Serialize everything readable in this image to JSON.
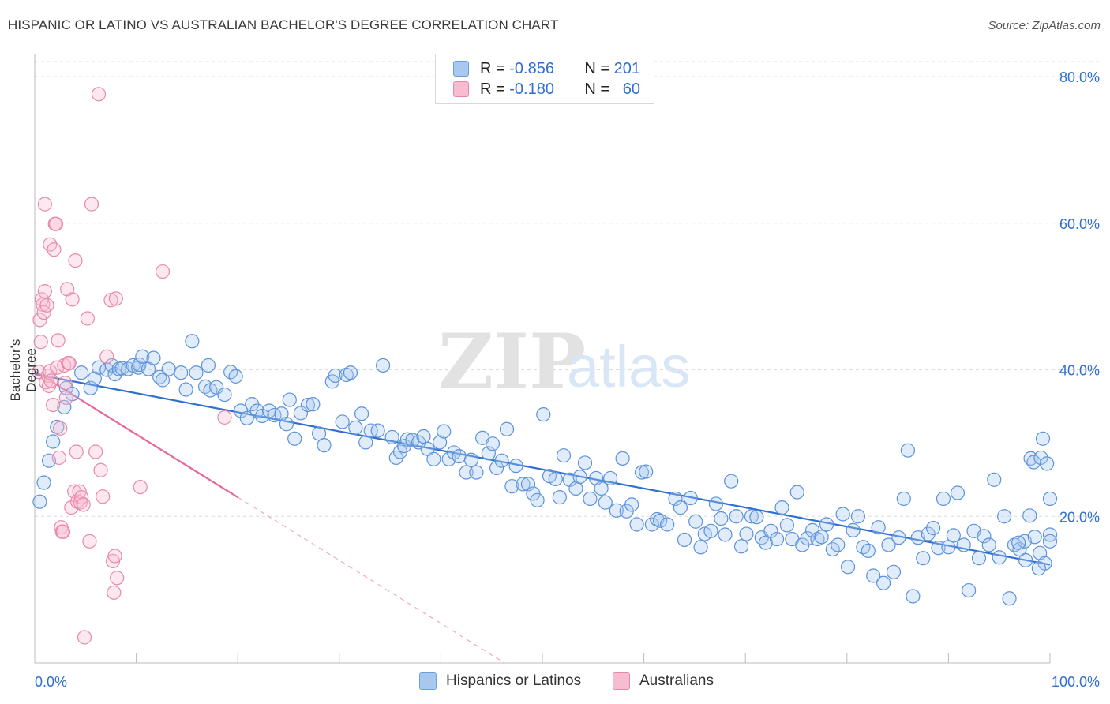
{
  "title": "HISPANIC OR LATINO VS AUSTRALIAN BACHELOR'S DEGREE CORRELATION CHART",
  "source": "Source: ZipAtlas.com",
  "watermark": {
    "zip": "ZIP",
    "atlas": "atlas"
  },
  "legend_top": [
    {
      "r_label": "R =",
      "r_value": "-0.856",
      "n_label": "N =",
      "n_value": "201",
      "color": "#a8c8f0",
      "border": "#6a9ee0"
    },
    {
      "r_label": "R =",
      "r_value": "-0.180",
      "n_label": "N =",
      "n_value": "60",
      "color": "#f8bcd0",
      "border": "#e78aa8"
    }
  ],
  "legend_bottom": [
    {
      "label": "Hispanics or Latinos",
      "color": "#a8c8f0",
      "border": "#6a9ee0"
    },
    {
      "label": "Australians",
      "color": "#f8bcd0",
      "border": "#e78aa8"
    }
  ],
  "chart_data": {
    "type": "scatter",
    "ylabel": "Bachelor's Degree",
    "xlim": [
      0,
      100
    ],
    "ylim": [
      0,
      80
    ],
    "x_tick_labels": {
      "min": "0.0%",
      "max": "100.0%"
    },
    "y_ticks": [
      {
        "value": 20,
        "label": "20.0%"
      },
      {
        "value": 40,
        "label": "40.0%"
      },
      {
        "value": 60,
        "label": "60.0%"
      },
      {
        "value": 80,
        "label": "80.0%"
      }
    ],
    "grid": true,
    "colors": {
      "blue": "#2f6fd1",
      "pink": "#e7679a",
      "axis": "#bbbbbb",
      "grid": "#dcdcdc"
    },
    "series": [
      {
        "name": "Hispanics or Latinos",
        "trend": {
          "x0": 0,
          "y0": 39.4,
          "x1": 100,
          "y1": 13.4
        },
        "points": [
          [
            0.5,
            22
          ],
          [
            0.9,
            24.6
          ],
          [
            1.4,
            27.6
          ],
          [
            1.8,
            30.2
          ],
          [
            2.2,
            32.2
          ],
          [
            2.9,
            34.9
          ],
          [
            3.1,
            37.5
          ],
          [
            3.7,
            36.7
          ],
          [
            4.6,
            39.6
          ],
          [
            5.5,
            37.5
          ],
          [
            5.9,
            38.8
          ],
          [
            6.3,
            40.3
          ],
          [
            7.1,
            40.0
          ],
          [
            7.6,
            40.6
          ],
          [
            7.9,
            39.4
          ],
          [
            8.3,
            40.1
          ],
          [
            8.6,
            40.2
          ],
          [
            9.2,
            40.1
          ],
          [
            9.7,
            40.6
          ],
          [
            10.2,
            40.3
          ],
          [
            10.3,
            40.7
          ],
          [
            10.6,
            41.8
          ],
          [
            11.2,
            40.1
          ],
          [
            11.7,
            41.6
          ],
          [
            12.3,
            39.0
          ],
          [
            12.6,
            38.6
          ],
          [
            13.2,
            40.1
          ],
          [
            14.4,
            39.6
          ],
          [
            14.9,
            37.3
          ],
          [
            15.5,
            43.9
          ],
          [
            15.9,
            39.6
          ],
          [
            16.8,
            37.7
          ],
          [
            17.1,
            40.6
          ],
          [
            17.3,
            37.2
          ],
          [
            17.9,
            37.6
          ],
          [
            18.7,
            36.6
          ],
          [
            19.3,
            39.7
          ],
          [
            19.8,
            39.1
          ],
          [
            20.3,
            34.4
          ],
          [
            20.9,
            33.4
          ],
          [
            21.4,
            35.3
          ],
          [
            21.9,
            34.4
          ],
          [
            22.4,
            33.7
          ],
          [
            23.1,
            34.4
          ],
          [
            23.6,
            33.8
          ],
          [
            24.3,
            34.0
          ],
          [
            24.8,
            32.6
          ],
          [
            25.1,
            35.9
          ],
          [
            25.6,
            30.6
          ],
          [
            26.2,
            34.1
          ],
          [
            26.9,
            35.2
          ],
          [
            27.4,
            35.3
          ],
          [
            28.0,
            31.3
          ],
          [
            28.5,
            29.7
          ],
          [
            29.3,
            38.4
          ],
          [
            29.6,
            39.2
          ],
          [
            30.3,
            32.9
          ],
          [
            30.7,
            39.3
          ],
          [
            31.1,
            39.6
          ],
          [
            31.6,
            32.1
          ],
          [
            32.2,
            34.0
          ],
          [
            32.6,
            30.1
          ],
          [
            33.1,
            31.7
          ],
          [
            33.8,
            31.7
          ],
          [
            34.3,
            40.6
          ],
          [
            35.2,
            30.8
          ],
          [
            35.6,
            28.0
          ],
          [
            36.0,
            28.8
          ],
          [
            36.4,
            29.6
          ],
          [
            36.7,
            30.5
          ],
          [
            37.2,
            30.4
          ],
          [
            37.8,
            30.1
          ],
          [
            38.3,
            30.9
          ],
          [
            38.7,
            29.2
          ],
          [
            39.3,
            27.8
          ],
          [
            39.9,
            30.1
          ],
          [
            40.3,
            31.6
          ],
          [
            40.8,
            27.8
          ],
          [
            41.3,
            28.7
          ],
          [
            41.8,
            28.2
          ],
          [
            42.5,
            26.0
          ],
          [
            43.0,
            27.7
          ],
          [
            43.5,
            26.0
          ],
          [
            44.1,
            30.7
          ],
          [
            44.7,
            28.6
          ],
          [
            45.1,
            29.9
          ],
          [
            45.5,
            26.6
          ],
          [
            46.0,
            27.6
          ],
          [
            46.5,
            31.9
          ],
          [
            47.0,
            24.1
          ],
          [
            47.4,
            26.9
          ],
          [
            48.1,
            24.4
          ],
          [
            48.6,
            24.4
          ],
          [
            49.1,
            23.1
          ],
          [
            49.5,
            22.2
          ],
          [
            50.1,
            33.9
          ],
          [
            50.7,
            25.5
          ],
          [
            51.3,
            25.1
          ],
          [
            51.7,
            22.6
          ],
          [
            52.1,
            28.3
          ],
          [
            52.7,
            25.0
          ],
          [
            53.3,
            23.8
          ],
          [
            53.7,
            25.4
          ],
          [
            54.2,
            27.3
          ],
          [
            54.7,
            22.4
          ],
          [
            55.3,
            25.2
          ],
          [
            55.8,
            23.8
          ],
          [
            56.2,
            21.9
          ],
          [
            56.7,
            25.2
          ],
          [
            57.3,
            20.8
          ],
          [
            57.9,
            27.9
          ],
          [
            58.3,
            20.7
          ],
          [
            58.8,
            21.6
          ],
          [
            59.3,
            18.9
          ],
          [
            59.8,
            26.0
          ],
          [
            60.2,
            26.1
          ],
          [
            60.8,
            18.9
          ],
          [
            61.3,
            19.6
          ],
          [
            61.6,
            19.4
          ],
          [
            62.3,
            18.9
          ],
          [
            63.1,
            22.4
          ],
          [
            63.6,
            21.2
          ],
          [
            64.0,
            16.8
          ],
          [
            64.6,
            22.5
          ],
          [
            65.1,
            19.3
          ],
          [
            65.6,
            15.8
          ],
          [
            66.0,
            17.6
          ],
          [
            66.6,
            18.0
          ],
          [
            67.1,
            21.7
          ],
          [
            67.6,
            19.7
          ],
          [
            68.0,
            17.5
          ],
          [
            68.6,
            24.8
          ],
          [
            69.1,
            20.0
          ],
          [
            69.6,
            15.9
          ],
          [
            70.1,
            17.6
          ],
          [
            70.6,
            20.0
          ],
          [
            71.1,
            19.9
          ],
          [
            71.6,
            17.1
          ],
          [
            72.0,
            16.4
          ],
          [
            72.5,
            18.0
          ],
          [
            73.1,
            16.9
          ],
          [
            73.6,
            21.2
          ],
          [
            74.1,
            18.8
          ],
          [
            74.6,
            16.9
          ],
          [
            75.1,
            23.3
          ],
          [
            75.6,
            16.1
          ],
          [
            76.1,
            17.0
          ],
          [
            76.6,
            18.1
          ],
          [
            77.1,
            16.9
          ],
          [
            77.5,
            17.2
          ],
          [
            78.0,
            18.9
          ],
          [
            78.6,
            15.5
          ],
          [
            79.1,
            16.1
          ],
          [
            79.6,
            20.3
          ],
          [
            80.1,
            13.1
          ],
          [
            80.6,
            18.1
          ],
          [
            81.1,
            20.0
          ],
          [
            81.6,
            15.8
          ],
          [
            82.1,
            15.3
          ],
          [
            82.6,
            11.9
          ],
          [
            83.1,
            18.5
          ],
          [
            83.6,
            10.9
          ],
          [
            84.1,
            16.1
          ],
          [
            84.6,
            12.4
          ],
          [
            85.1,
            17.1
          ],
          [
            85.6,
            22.4
          ],
          [
            86.0,
            29.0
          ],
          [
            86.5,
            9.1
          ],
          [
            87.0,
            17.1
          ],
          [
            87.5,
            14.3
          ],
          [
            88.0,
            17.6
          ],
          [
            88.5,
            18.4
          ],
          [
            89.0,
            15.7
          ],
          [
            89.5,
            22.4
          ],
          [
            90.0,
            15.8
          ],
          [
            90.5,
            17.4
          ],
          [
            90.9,
            23.2
          ],
          [
            91.5,
            16.1
          ],
          [
            92.0,
            9.9
          ],
          [
            92.5,
            18.0
          ],
          [
            93.0,
            14.3
          ],
          [
            93.5,
            17.3
          ],
          [
            94.0,
            16.1
          ],
          [
            94.5,
            25.0
          ],
          [
            95.0,
            14.4
          ],
          [
            95.5,
            20.0
          ],
          [
            96.0,
            8.8
          ],
          [
            96.5,
            16.1
          ],
          [
            97.0,
            15.5
          ],
          [
            97.5,
            16.6
          ],
          [
            98.0,
            20.1
          ],
          [
            98.5,
            17.2
          ],
          [
            99.0,
            15.0
          ],
          [
            99.5,
            13.6
          ],
          [
            100,
            17.5
          ],
          [
            96.9,
            16.4
          ],
          [
            97.6,
            14.0
          ],
          [
            98.1,
            27.9
          ],
          [
            98.4,
            27.4
          ],
          [
            98.9,
            12.9
          ],
          [
            99.1,
            28.0
          ],
          [
            99.3,
            30.6
          ],
          [
            99.7,
            27.2
          ],
          [
            100,
            22.4
          ],
          [
            100,
            16.6
          ]
        ]
      },
      {
        "name": "Australians",
        "trend": {
          "x0": 0,
          "y0": 39.8,
          "x1": 20,
          "y1": 22.6
        },
        "points": [
          [
            0.4,
            39.7
          ],
          [
            0.5,
            46.8
          ],
          [
            0.6,
            43.8
          ],
          [
            0.7,
            49.6
          ],
          [
            0.8,
            48.9
          ],
          [
            0.9,
            47.8
          ],
          [
            1.0,
            50.7
          ],
          [
            1.0,
            62.6
          ],
          [
            1.1,
            38.3
          ],
          [
            1.2,
            48.8
          ],
          [
            1.3,
            39.2
          ],
          [
            1.4,
            37.8
          ],
          [
            1.5,
            57.1
          ],
          [
            1.5,
            39.8
          ],
          [
            1.6,
            38.5
          ],
          [
            1.8,
            35.2
          ],
          [
            1.9,
            56.4
          ],
          [
            2.0,
            59.9
          ],
          [
            2.1,
            59.9
          ],
          [
            2.2,
            40.3
          ],
          [
            2.3,
            44.0
          ],
          [
            2.4,
            28.0
          ],
          [
            2.5,
            32.0
          ],
          [
            2.6,
            18.5
          ],
          [
            2.7,
            17.9
          ],
          [
            2.8,
            17.9
          ],
          [
            2.9,
            40.6
          ],
          [
            3.0,
            38.2
          ],
          [
            3.1,
            36.2
          ],
          [
            3.2,
            51.0
          ],
          [
            3.3,
            40.9
          ],
          [
            3.4,
            40.9
          ],
          [
            3.6,
            21.2
          ],
          [
            3.7,
            49.6
          ],
          [
            3.9,
            23.4
          ],
          [
            4.0,
            54.9
          ],
          [
            4.1,
            28.8
          ],
          [
            4.2,
            22.0
          ],
          [
            4.4,
            23.4
          ],
          [
            4.5,
            21.9
          ],
          [
            4.6,
            22.6
          ],
          [
            4.8,
            21.6
          ],
          [
            4.9,
            3.5
          ],
          [
            5.2,
            47.0
          ],
          [
            5.4,
            16.6
          ],
          [
            5.6,
            62.6
          ],
          [
            6.0,
            28.8
          ],
          [
            6.3,
            77.6
          ],
          [
            6.5,
            26.3
          ],
          [
            6.7,
            22.7
          ],
          [
            7.1,
            41.8
          ],
          [
            7.5,
            49.5
          ],
          [
            7.7,
            13.9
          ],
          [
            7.8,
            9.6
          ],
          [
            7.9,
            14.6
          ],
          [
            8.0,
            49.7
          ],
          [
            8.1,
            11.6
          ],
          [
            10.4,
            24.0
          ],
          [
            12.6,
            53.4
          ],
          [
            18.7,
            33.5
          ]
        ]
      }
    ]
  }
}
